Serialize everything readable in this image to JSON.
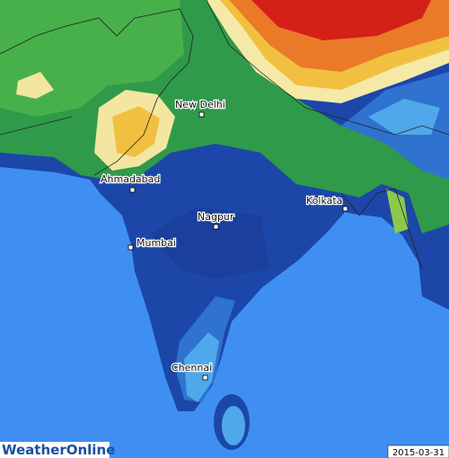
{
  "cities": [
    {
      "label": "New Delhi"
    },
    {
      "label": "Ahmadabad"
    },
    {
      "label": "Nagpur"
    },
    {
      "label": "Kolkata"
    },
    {
      "label": "Mumbai"
    },
    {
      "label": "Chennai"
    }
  ],
  "footer": {
    "logo": "WeatherOnline",
    "date": "2015-03-31"
  }
}
